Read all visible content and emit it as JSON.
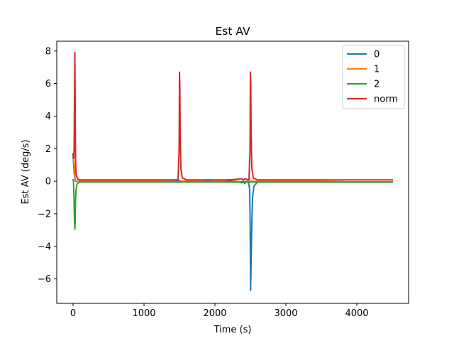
{
  "chart_data": {
    "type": "line",
    "title": "Est AV",
    "xlabel": "Time (s)",
    "ylabel": "Est AV (deg/s)",
    "xlim": [
      -230,
      4730
    ],
    "ylim": [
      -7.5,
      8.6
    ],
    "xticks": [
      0,
      1000,
      2000,
      3000,
      4000
    ],
    "xtick_labels": [
      "0",
      "1000",
      "2000",
      "3000",
      "4000"
    ],
    "yticks": [
      -6,
      -4,
      -2,
      0,
      2,
      4,
      6,
      8
    ],
    "ytick_labels": [
      "−6",
      "−4",
      "−2",
      "0",
      "2",
      "4",
      "6",
      "8"
    ],
    "grid": false,
    "legend_position": "top-right",
    "series": [
      {
        "name": "0",
        "color": "#1f77b4",
        "x": [
          0,
          5,
          10,
          15,
          20,
          25,
          30,
          40,
          60,
          100,
          300,
          600,
          1000,
          1300,
          1490,
          1500,
          1510,
          1520,
          1600,
          1800,
          2000,
          2200,
          2300,
          2380,
          2400,
          2420,
          2440,
          2470,
          2490,
          2495,
          2500,
          2503,
          2510,
          2520,
          2530,
          2550,
          2600,
          3000,
          3500,
          4000,
          4500
        ],
        "values": [
          1.6,
          1.2,
          1.0,
          0.5,
          0.4,
          0.2,
          0.05,
          -0.02,
          0.0,
          0.0,
          0.0,
          0.0,
          0.0,
          0.0,
          0.0,
          0.05,
          0.0,
          0.0,
          0.0,
          0.0,
          0.0,
          0.0,
          0.0,
          -0.1,
          0.05,
          -0.15,
          0.0,
          0.0,
          -0.5,
          -2.0,
          -5.0,
          -6.7,
          -5.0,
          -2.5,
          -1.0,
          -0.3,
          -0.05,
          -0.05,
          -0.05,
          -0.05,
          -0.05
        ]
      },
      {
        "name": "1",
        "color": "#ff7f0e",
        "x": [
          0,
          10,
          20,
          30,
          40,
          60,
          100,
          300,
          600,
          1000,
          1300,
          1500,
          1520,
          1700,
          1900,
          2000,
          2100,
          2200,
          2300,
          2400,
          2500,
          2520,
          3000,
          3500,
          4000,
          4500
        ],
        "values": [
          1.4,
          1.2,
          0.8,
          0.2,
          0.0,
          0.0,
          0.0,
          0.0,
          0.0,
          0.0,
          0.0,
          -0.05,
          0.0,
          0.05,
          -0.05,
          0.0,
          0.0,
          0.1,
          0.0,
          -0.05,
          0.0,
          0.0,
          0.0,
          0.0,
          -0.05,
          -0.05
        ]
      },
      {
        "name": "2",
        "color": "#2ca02c",
        "x": [
          0,
          5,
          10,
          15,
          20,
          25,
          30,
          35,
          40,
          50,
          60,
          80,
          100,
          300,
          600,
          1000,
          1300,
          1500,
          1600,
          2000,
          2400,
          2500,
          2600,
          3000,
          3500,
          4000,
          4500
        ],
        "values": [
          0.1,
          0.05,
          -0.5,
          -1.5,
          -2.5,
          -2.95,
          -2.5,
          -1.2,
          -0.6,
          -0.3,
          -0.15,
          -0.08,
          -0.05,
          -0.05,
          -0.05,
          -0.05,
          -0.05,
          -0.05,
          -0.05,
          -0.05,
          -0.05,
          -0.05,
          -0.05,
          -0.05,
          -0.05,
          -0.05,
          -0.05
        ]
      },
      {
        "name": "norm",
        "color": "#d62728",
        "x": [
          0,
          5,
          10,
          15,
          20,
          25,
          28,
          32,
          36,
          40,
          50,
          70,
          100,
          300,
          600,
          1000,
          1300,
          1480,
          1495,
          1500,
          1505,
          1510,
          1520,
          1540,
          1600,
          1800,
          2000,
          2200,
          2380,
          2400,
          2420,
          2480,
          2495,
          2500,
          2505,
          2510,
          2520,
          2540,
          2600,
          3000,
          3500,
          4000,
          4500
        ],
        "values": [
          1.7,
          1.5,
          1.4,
          2.0,
          5.0,
          7.9,
          6.0,
          3.0,
          1.2,
          0.6,
          0.3,
          0.12,
          0.08,
          0.08,
          0.08,
          0.08,
          0.08,
          0.08,
          2.0,
          6.7,
          6.0,
          3.0,
          0.8,
          0.2,
          0.08,
          0.08,
          0.08,
          0.08,
          0.15,
          0.08,
          0.15,
          0.08,
          2.0,
          6.7,
          6.0,
          3.0,
          0.8,
          0.2,
          0.08,
          0.08,
          0.08,
          0.08,
          0.08
        ]
      }
    ]
  }
}
